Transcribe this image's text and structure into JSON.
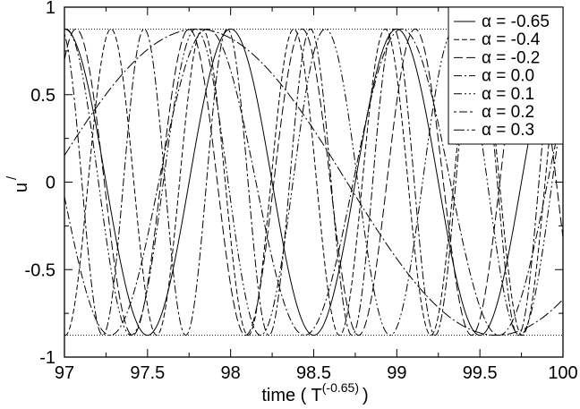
{
  "chart_data": {
    "type": "line",
    "title": "",
    "xlabel": "time ( T",
    "xlabel_sup": "(-0.65)",
    "xlabel_close": ")",
    "ylabel": "u",
    "ylabel_sup": "/",
    "xlim": [
      97,
      100
    ],
    "ylim": [
      -1,
      1
    ],
    "x_ticks": [
      97,
      97.5,
      98,
      98.5,
      99,
      99.5,
      100
    ],
    "x_tick_labels": [
      "97",
      "97.5",
      "98",
      "98.5",
      "99",
      "99.5",
      "100"
    ],
    "y_ticks": [
      -1,
      -0.5,
      0,
      0.5,
      1
    ],
    "y_tick_labels": [
      "-1",
      "-0.5",
      "0",
      "0.5",
      "1"
    ],
    "grid": false,
    "legend_position": "top-right",
    "amplitude": 0.875,
    "reference_lines": [
      0.875,
      -0.875
    ],
    "series": [
      {
        "name": "α = -0.65",
        "dash": "solid",
        "period": 1.0,
        "max_at": 97.0
      },
      {
        "name": "α = -0.4",
        "dash": "dash-short",
        "period": 0.55,
        "max_at": 97.28
      },
      {
        "name": "α = -0.2",
        "dash": "dash-long",
        "period": 0.68,
        "max_at": 97.75
      },
      {
        "name": "α = 0.0",
        "dash": "dash-dot",
        "period": 1.17,
        "max_at": 97.86
      },
      {
        "name": "α = 0.1",
        "dash": "dash-dot-dot",
        "period": 0.78,
        "max_at": 97.79
      },
      {
        "name": "α = 0.2",
        "dash": "dot-dash-long",
        "period": 0.5,
        "max_at": 96.98
      },
      {
        "name": "α = 0.3",
        "dash": "dash-dot-fine",
        "period": 3.6,
        "max_at": 97.8
      }
    ]
  }
}
